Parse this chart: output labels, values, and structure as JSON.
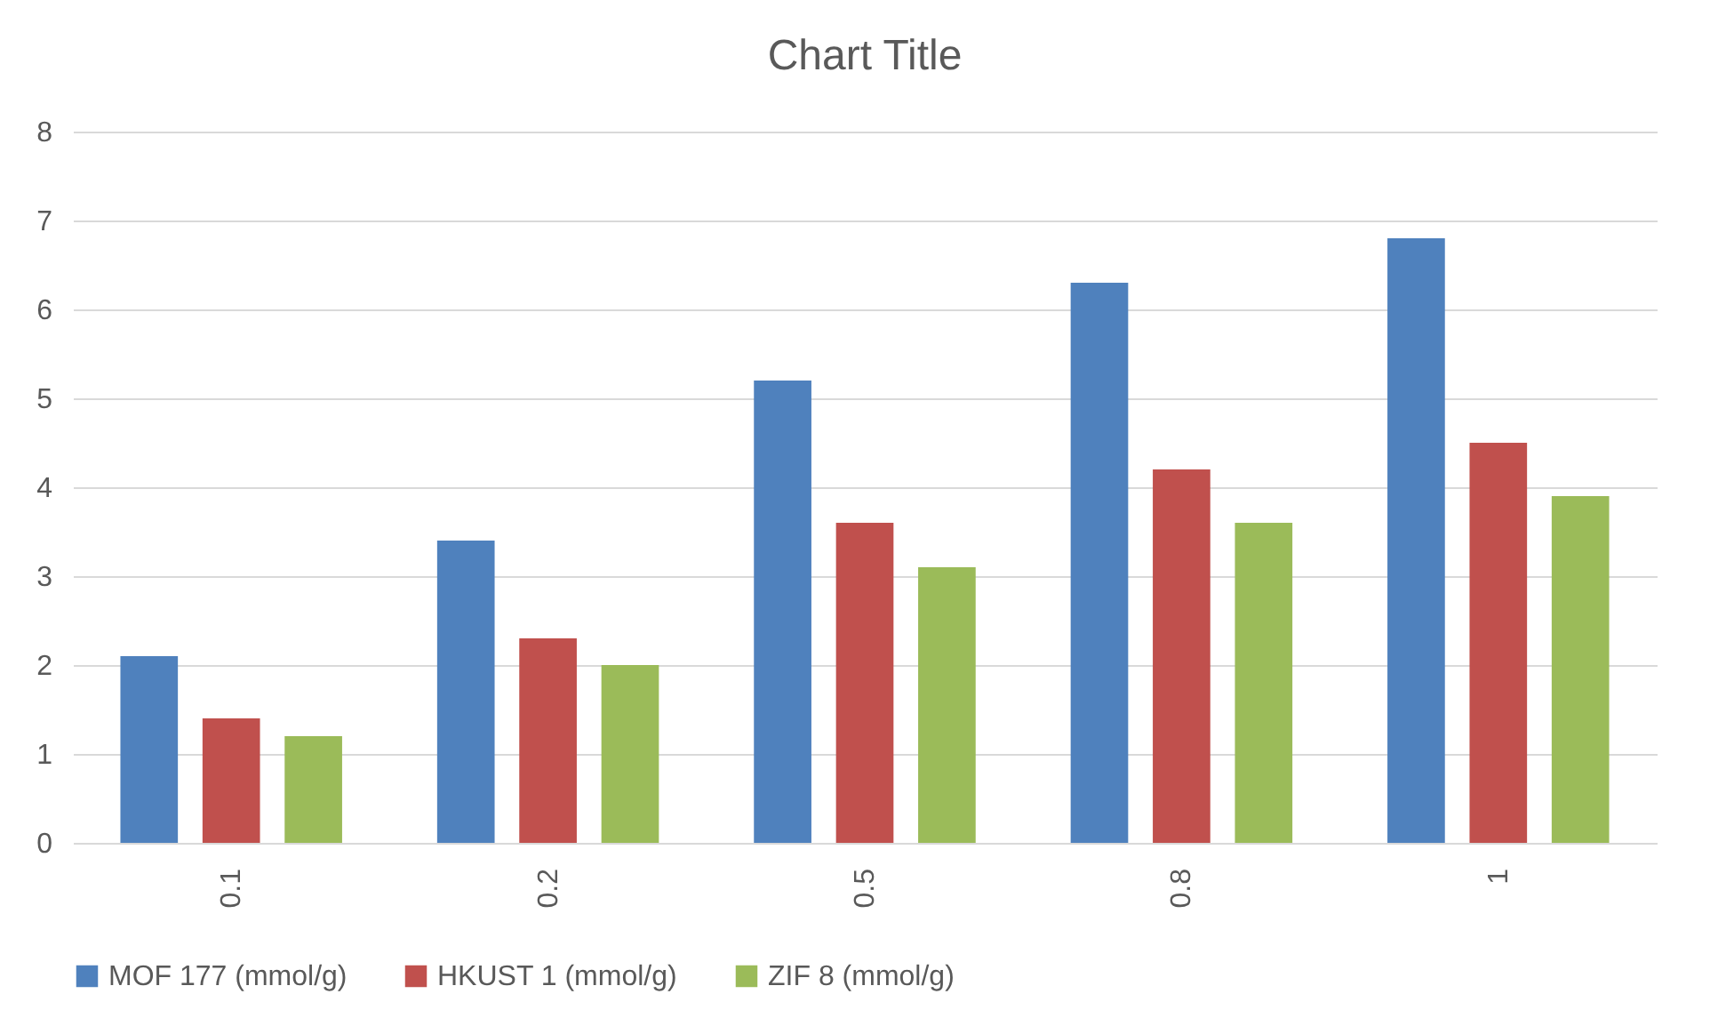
{
  "chart_data": {
    "type": "bar",
    "title": "Chart Title",
    "categories": [
      "0.1",
      "0.2",
      "0.5",
      "0.8",
      "1"
    ],
    "series": [
      {
        "name": "MOF 177 (mmol/g)",
        "color": "#4f81bd",
        "values": [
          2.1,
          3.4,
          5.2,
          6.3,
          6.8
        ]
      },
      {
        "name": "HKUST 1 (mmol/g)",
        "color": "#c0504d",
        "values": [
          1.4,
          2.3,
          3.6,
          4.2,
          4.5
        ]
      },
      {
        "name": "ZIF 8 (mmol/g)",
        "color": "#9bbb59",
        "values": [
          1.2,
          2.0,
          3.1,
          3.6,
          3.9
        ]
      }
    ],
    "ylim": [
      0,
      8
    ],
    "yticks": [
      0,
      1,
      2,
      3,
      4,
      5,
      6,
      7,
      8
    ],
    "grid": "y",
    "legend": "bottom"
  }
}
